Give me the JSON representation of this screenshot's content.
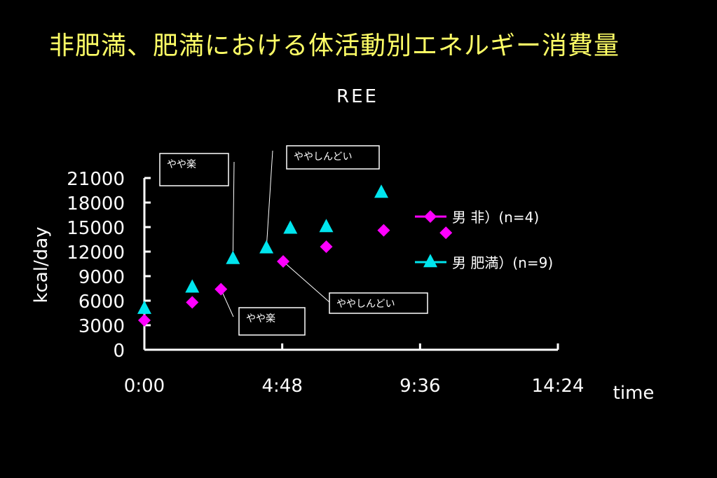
{
  "slide": {
    "title": "非肥満、肥満における体活動別エネルギー消費量"
  },
  "chart_data": {
    "type": "scatter",
    "title": "REE",
    "xlabel": "time",
    "ylabel": "kcal/day",
    "xlim": [
      "0:00",
      "14:24"
    ],
    "ylim": [
      0,
      21000
    ],
    "x_ticks": [
      "0:00",
      "4:48",
      "9:36",
      "14:24"
    ],
    "y_ticks": [
      0,
      3000,
      6000,
      9000,
      12000,
      15000,
      18000,
      21000
    ],
    "grid": false,
    "legend_position": "right",
    "series": [
      {
        "name": "男 非）(n=4)",
        "marker": "diamond",
        "color": "#FF00FF",
        "points": [
          {
            "x": "0:00",
            "y": 3600
          },
          {
            "x": "1:40",
            "y": 5800
          },
          {
            "x": "2:40",
            "y": 7400
          },
          {
            "x": "4:50",
            "y": 10800
          },
          {
            "x": "6:20",
            "y": 12600
          },
          {
            "x": "8:20",
            "y": 14600
          },
          {
            "x": "10:30",
            "y": 14300
          }
        ]
      },
      {
        "name": "男 肥満）(n=9)",
        "marker": "triangle",
        "color": "#00E5EE",
        "points": [
          {
            "x": "0:00",
            "y": 5000
          },
          {
            "x": "1:40",
            "y": 7600
          },
          {
            "x": "3:05",
            "y": 11100
          },
          {
            "x": "4:15",
            "y": 12400
          },
          {
            "x": "5:05",
            "y": 14800
          },
          {
            "x": "6:20",
            "y": 15000
          },
          {
            "x": "8:15",
            "y": 19200
          }
        ]
      }
    ],
    "annotations": [
      {
        "label": "やや楽",
        "target_series": 1,
        "target_point": 2
      },
      {
        "label": "ややしんどい",
        "target_series": 1,
        "target_point": 3
      },
      {
        "label": "ややしんどい",
        "target_series": 0,
        "target_point": 3
      },
      {
        "label": "やや楽",
        "target_series": 0,
        "target_point": 2
      }
    ],
    "colors": {
      "axis": "#FFFFFF",
      "title": "#FFFFFF",
      "slide_title": "#FFFF66"
    }
  }
}
